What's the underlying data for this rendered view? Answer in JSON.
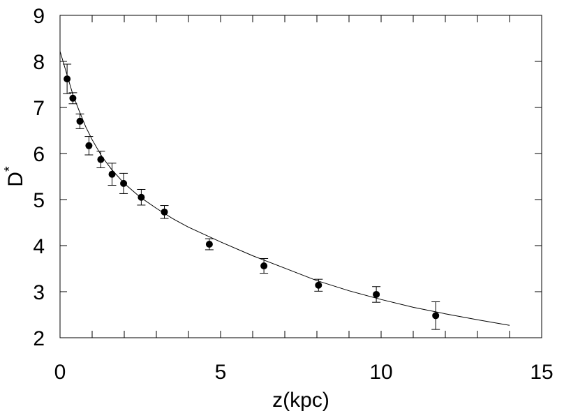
{
  "chart_data": {
    "type": "scatter",
    "title": "",
    "xlabel": "z(kpc)",
    "ylabel_main": "D",
    "ylabel_sup": "*",
    "xlim": [
      0,
      15
    ],
    "ylim": [
      2,
      9
    ],
    "xticks": [
      0,
      5,
      10,
      15
    ],
    "yticks": [
      2,
      3,
      4,
      5,
      6,
      7,
      8,
      9
    ],
    "xtick_labels": [
      "0",
      "5",
      "10",
      "15"
    ],
    "ytick_labels": [
      "2",
      "3",
      "4",
      "5",
      "6",
      "7",
      "8",
      "9"
    ],
    "x_minor_step": 1,
    "y_minor_step": 1,
    "grid": false,
    "series": [
      {
        "kind": "points_with_error_bars",
        "points": [
          {
            "x": 0.22,
            "y": 7.62,
            "err": 0.32
          },
          {
            "x": 0.4,
            "y": 7.2,
            "err": 0.12
          },
          {
            "x": 0.62,
            "y": 6.7,
            "err": 0.16
          },
          {
            "x": 0.9,
            "y": 6.17,
            "err": 0.2
          },
          {
            "x": 1.27,
            "y": 5.87,
            "err": 0.18
          },
          {
            "x": 1.62,
            "y": 5.55,
            "err": 0.24
          },
          {
            "x": 1.98,
            "y": 5.35,
            "err": 0.22
          },
          {
            "x": 2.53,
            "y": 5.05,
            "err": 0.17
          },
          {
            "x": 3.25,
            "y": 4.73,
            "err": 0.14
          },
          {
            "x": 4.65,
            "y": 4.03,
            "err": 0.12
          },
          {
            "x": 6.35,
            "y": 3.56,
            "err": 0.16
          },
          {
            "x": 8.05,
            "y": 3.14,
            "err": 0.13
          },
          {
            "x": 9.85,
            "y": 2.94,
            "err": 0.17
          },
          {
            "x": 11.7,
            "y": 2.48,
            "err": 0.3
          }
        ]
      },
      {
        "kind": "fit_curve",
        "points": [
          {
            "x": 0.0,
            "y": 8.22
          },
          {
            "x": 0.2,
            "y": 7.75
          },
          {
            "x": 0.4,
            "y": 7.28
          },
          {
            "x": 0.6,
            "y": 6.92
          },
          {
            "x": 0.8,
            "y": 6.58
          },
          {
            "x": 1.0,
            "y": 6.3
          },
          {
            "x": 1.3,
            "y": 5.94
          },
          {
            "x": 1.6,
            "y": 5.66
          },
          {
            "x": 2.0,
            "y": 5.35
          },
          {
            "x": 2.5,
            "y": 5.05
          },
          {
            "x": 3.0,
            "y": 4.81
          },
          {
            "x": 3.5,
            "y": 4.59
          },
          {
            "x": 4.0,
            "y": 4.4
          },
          {
            "x": 5.0,
            "y": 4.08
          },
          {
            "x": 6.0,
            "y": 3.78
          },
          {
            "x": 7.0,
            "y": 3.51
          },
          {
            "x": 8.0,
            "y": 3.24
          },
          {
            "x": 9.0,
            "y": 3.02
          },
          {
            "x": 10.0,
            "y": 2.83
          },
          {
            "x": 11.0,
            "y": 2.66
          },
          {
            "x": 12.0,
            "y": 2.52
          },
          {
            "x": 13.0,
            "y": 2.39
          },
          {
            "x": 14.0,
            "y": 2.27
          }
        ]
      }
    ]
  }
}
